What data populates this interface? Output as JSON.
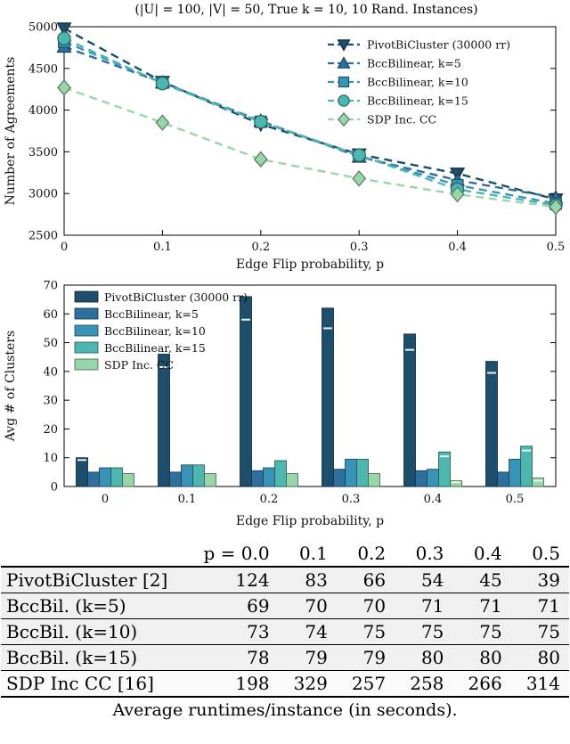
{
  "chart_data": [
    {
      "type": "line",
      "title": "(|U| = 100, |V| = 50, True k = 10, 10 Rand. Instances)",
      "xlabel": "Edge Flip probability, p",
      "ylabel": "Number of Agreements",
      "x": [
        0,
        0.1,
        0.2,
        0.3,
        0.4,
        0.5
      ],
      "xticks": [
        "0",
        "0.1",
        "0.2",
        "0.3",
        "0.4",
        "0.5"
      ],
      "yticks": [
        2500,
        3000,
        3500,
        4000,
        4500,
        5000
      ],
      "xlim": [
        0,
        0.5
      ],
      "ylim": [
        2500,
        5000
      ],
      "grid": false,
      "legend_position": "top-right",
      "line_style": "dashed",
      "series": [
        {
          "name": "PivotBiCluster (30000 rr)",
          "marker": "triangle-down",
          "color": "#1d4e6b",
          "values": [
            4980,
            4340,
            3830,
            3470,
            3240,
            2930
          ]
        },
        {
          "name": "BccBilinear, k=5",
          "marker": "triangle-up",
          "color": "#2d6f9e",
          "values": [
            4760,
            4330,
            3870,
            3440,
            3160,
            2950
          ]
        },
        {
          "name": "BccBilinear, k=10",
          "marker": "square",
          "color": "#3993b6",
          "values": [
            4820,
            4330,
            3860,
            3450,
            3100,
            2880
          ]
        },
        {
          "name": "BccBilinear, k=15",
          "marker": "circle",
          "color": "#4db6b0",
          "values": [
            4860,
            4320,
            3860,
            3460,
            3050,
            2860
          ]
        },
        {
          "name": "SDP Inc. CC",
          "marker": "diamond",
          "color": "#98d6a9",
          "values": [
            4270,
            3850,
            3410,
            3180,
            2990,
            2840
          ]
        }
      ]
    },
    {
      "type": "bar",
      "title": "",
      "xlabel": "Edge Flip probability, p",
      "ylabel": "Avg # of Clusters",
      "categories": [
        "0",
        "0.1",
        "0.2",
        "0.3",
        "0.4",
        "0.5"
      ],
      "yticks": [
        0,
        10,
        20,
        30,
        40,
        50,
        60,
        70
      ],
      "ylim": [
        0,
        70
      ],
      "grid": false,
      "legend_position": "top-left",
      "series": [
        {
          "name": "PivotBiCluster (30000 rr)",
          "color": "#1d4e6b",
          "values": [
            10,
            46,
            66,
            62,
            53,
            43.5
          ],
          "err": [
            0.8,
            4.5,
            8,
            7,
            5.5,
            4
          ]
        },
        {
          "name": "BccBilinear, k=5",
          "color": "#2d6f9e",
          "values": [
            5,
            5,
            5.5,
            6,
            5.5,
            5
          ],
          "err": [
            0,
            0,
            0,
            0,
            0,
            0
          ]
        },
        {
          "name": "BccBilinear, k=10",
          "color": "#3993b6",
          "values": [
            6.5,
            7.5,
            6.5,
            9.5,
            6,
            9.5
          ],
          "err": [
            0,
            0,
            0,
            0,
            0,
            0
          ]
        },
        {
          "name": "BccBilinear, k=15",
          "color": "#4db6b0",
          "values": [
            6.5,
            7.5,
            9,
            9.5,
            12,
            14
          ],
          "err": [
            0,
            0,
            0,
            0,
            1.5,
            1.5
          ]
        },
        {
          "name": "SDP Inc. CC",
          "color": "#98d6a9",
          "values": [
            4.5,
            4.5,
            4.5,
            4.5,
            2,
            3
          ],
          "err": [
            0,
            0,
            0,
            0,
            0.5,
            1
          ]
        }
      ]
    },
    {
      "type": "table",
      "header": [
        "p = 0.0",
        "0.1",
        "0.2",
        "0.3",
        "0.4",
        "0.5"
      ],
      "rows": [
        {
          "label": "PivotBiCluster [2]",
          "values": [
            "124",
            "83",
            "66",
            "54",
            "45",
            "39"
          ]
        },
        {
          "label": "BccBil. (k=5)",
          "values": [
            "69",
            "70",
            "70",
            "71",
            "71",
            "71"
          ]
        },
        {
          "label": "BccBil. (k=10)",
          "values": [
            "73",
            "74",
            "75",
            "75",
            "75",
            "75"
          ]
        },
        {
          "label": "BccBil. (k=15)",
          "values": [
            "78",
            "79",
            "79",
            "80",
            "80",
            "80"
          ]
        },
        {
          "label": "SDP Inc CC [16]",
          "values": [
            "198",
            "329",
            "257",
            "258",
            "266",
            "314"
          ]
        }
      ],
      "caption": "Average runtimes/instance (in seconds)."
    }
  ]
}
